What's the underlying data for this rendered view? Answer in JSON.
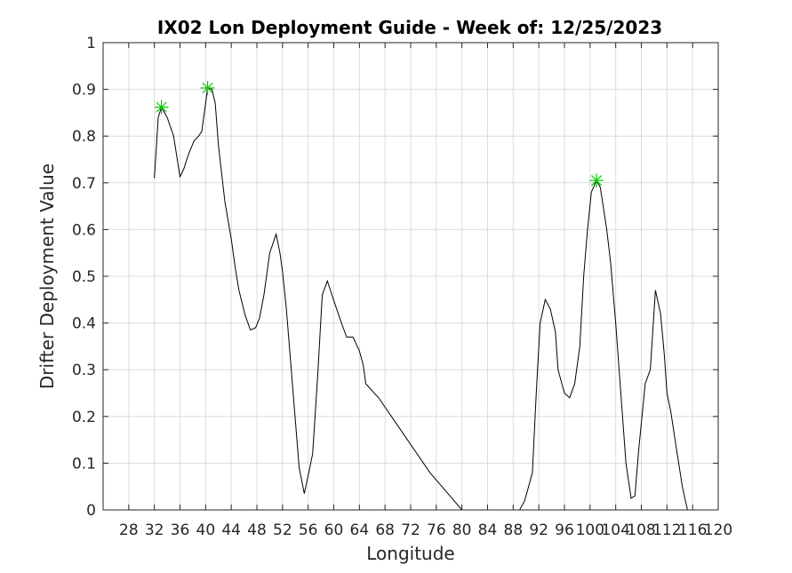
{
  "chart_data": {
    "type": "line",
    "title": "IX02 Lon Deployment Guide - Week of: 12/25/2023",
    "xlabel": "Longitude",
    "ylabel": "Drifter Deployment Value",
    "xlim": [
      24,
      120
    ],
    "ylim": [
      0,
      1
    ],
    "grid": true,
    "x_ticks": [
      28,
      32,
      36,
      40,
      44,
      48,
      52,
      56,
      60,
      64,
      68,
      72,
      76,
      80,
      84,
      88,
      92,
      96,
      100,
      104,
      108,
      112,
      116,
      120
    ],
    "x_tick_labels": [
      "28",
      "32",
      "36",
      "40",
      "44",
      "48",
      "52",
      "56",
      "60",
      "64",
      "68",
      "72",
      "76",
      "80",
      "84",
      "88",
      "92",
      "96",
      "100",
      "104",
      "108",
      "112",
      "116",
      "120"
    ],
    "y_ticks": [
      0,
      0.1,
      0.2,
      0.3,
      0.4,
      0.5,
      0.6,
      0.7,
      0.8,
      0.9,
      1
    ],
    "y_tick_labels": [
      "0",
      "0.1",
      "0.2",
      "0.3",
      "0.4",
      "0.5",
      "0.6",
      "0.7",
      "0.8",
      "0.9",
      "1"
    ],
    "line_color": "#000000",
    "marker_color": "#00cc00",
    "series": [
      {
        "x": [
          32.0,
          32.6,
          33.1,
          34.0,
          35.0,
          36.0,
          36.6,
          37.3,
          38.2,
          38.9,
          39.4,
          40.0,
          40.3,
          41.0,
          41.5,
          42.0,
          43.0,
          44.0,
          44.6,
          45.2,
          46.2,
          47.0,
          47.8,
          48.4,
          49.1,
          50.0,
          51.0,
          51.6,
          52.0,
          52.6,
          53.6,
          54.6,
          55.4,
          56.1,
          56.7,
          57.5,
          58.2,
          59.0,
          60.2,
          61.2,
          62.0,
          63.0,
          64.0,
          64.6,
          65.0,
          67.0,
          70.0,
          75.0,
          80.0,
          85.0,
          87.0,
          88.4,
          89.0,
          89.8,
          90.4,
          91.0,
          91.6,
          92.2,
          93.0,
          93.8,
          94.6,
          95.0,
          96.0,
          96.8,
          97.6,
          98.4,
          99.0,
          99.6,
          100.2,
          101.0,
          101.6,
          102.6,
          103.2,
          104.0,
          104.8,
          105.6,
          106.4,
          107.0,
          107.6,
          108.6,
          109.4,
          110.2,
          111.0,
          111.6,
          112.0,
          112.6,
          113.6,
          114.4,
          115.2,
          116.0
        ],
        "y": [
          0.71,
          0.84,
          0.862,
          0.84,
          0.8,
          0.713,
          0.73,
          0.76,
          0.79,
          0.8,
          0.81,
          0.87,
          0.903,
          0.9,
          0.87,
          0.78,
          0.66,
          0.58,
          0.52,
          0.47,
          0.415,
          0.385,
          0.39,
          0.41,
          0.46,
          0.55,
          0.59,
          0.55,
          0.51,
          0.43,
          0.26,
          0.09,
          0.035,
          0.08,
          0.12,
          0.29,
          0.46,
          0.49,
          0.44,
          0.4,
          0.37,
          0.37,
          0.34,
          0.31,
          0.27,
          0.24,
          0.18,
          0.08,
          0.0,
          0.0,
          0.0,
          0.0,
          0.0,
          0.02,
          0.05,
          0.08,
          0.25,
          0.4,
          0.45,
          0.43,
          0.38,
          0.3,
          0.25,
          0.24,
          0.27,
          0.35,
          0.5,
          0.6,
          0.68,
          0.705,
          0.69,
          0.6,
          0.53,
          0.4,
          0.25,
          0.1,
          0.025,
          0.03,
          0.13,
          0.27,
          0.3,
          0.47,
          0.42,
          0.33,
          0.25,
          0.21,
          0.12,
          0.05,
          0.0,
          0.0
        ]
      }
    ],
    "markers": [
      {
        "x": 33.1,
        "y": 0.862
      },
      {
        "x": 40.3,
        "y": 0.903
      },
      {
        "x": 101.0,
        "y": 0.705
      }
    ]
  }
}
